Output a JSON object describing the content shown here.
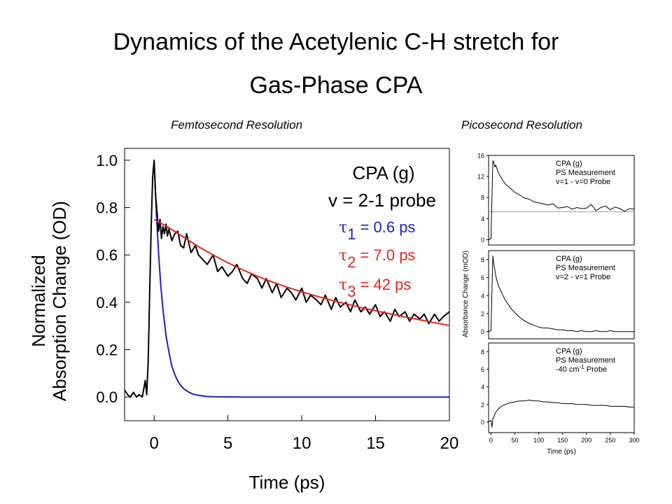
{
  "slide": {
    "title_line1": "Dynamics of the Acetylenic C-H stretch for",
    "title_line2": "Gas-Phase CPA",
    "subtitle_femto": "Femtosecond Resolution",
    "subtitle_pico": "Picosecond Resolution"
  },
  "colors": {
    "data": "#000000",
    "tau1_fit": "#1f1fbf",
    "tau23_fit": "#e0281c",
    "baseline": "#a0a0a0"
  },
  "chart_data": [
    {
      "type": "line",
      "xlabel": "Time (ps)",
      "ylabel_line1": "Normalized",
      "ylabel_line2": "Absorption Change (OD)",
      "xlim": [
        -2,
        20
      ],
      "ylim": [
        -0.1,
        1.05
      ],
      "xticks": [
        0,
        5,
        10,
        15,
        20
      ],
      "yticks": [
        0.0,
        0.2,
        0.4,
        0.6,
        0.8,
        1.0
      ],
      "ytick_labels": [
        "0.0",
        "0.2",
        "0.4",
        "0.6",
        "0.8",
        "1.0"
      ],
      "legend": {
        "line1": "CPA (g)",
        "line2": "v = 2-1 probe",
        "tau1": {
          "symbol": "τ",
          "sub": "1",
          "text": "= 0.6 ps"
        },
        "tau2": {
          "symbol": "τ",
          "sub": "2",
          "text": "= 7.0 ps"
        },
        "tau3": {
          "symbol": "τ",
          "sub": "3",
          "text": "= 42 ps"
        }
      },
      "series": [
        {
          "x": [
            -2,
            -1.8,
            -1.6,
            -1.4,
            -1.2,
            -1.0,
            -0.8,
            -0.6,
            -0.5,
            -0.4,
            -0.3,
            -0.2,
            -0.1,
            0.0,
            0.1,
            0.2,
            0.3,
            0.4,
            0.5,
            0.6,
            0.7,
            0.8,
            0.9,
            1.0,
            1.2,
            1.4,
            1.6,
            1.8,
            2.0,
            2.2,
            2.5,
            2.8,
            3.0,
            3.3,
            3.6,
            4.0,
            4.3,
            4.6,
            5.0,
            5.3,
            5.6,
            6.0,
            6.3,
            6.6,
            7.0,
            7.3,
            7.6,
            8.0,
            8.3,
            8.6,
            9.0,
            9.3,
            9.6,
            10.0,
            10.3,
            10.6,
            11.0,
            11.3,
            11.6,
            12.0,
            12.3,
            12.6,
            13.0,
            13.3,
            13.6,
            14.0,
            14.3,
            14.6,
            15.0,
            15.3,
            15.6,
            16.0,
            16.3,
            16.6,
            17.0,
            17.3,
            17.6,
            18.0,
            18.3,
            18.6,
            19.0,
            19.3,
            19.6,
            20.0
          ],
          "values": [
            0.03,
            0.01,
            0.0,
            0.02,
            0.0,
            0.01,
            0.0,
            0.07,
            0.01,
            0.15,
            0.45,
            0.72,
            0.93,
            1.0,
            0.85,
            0.78,
            0.7,
            0.75,
            0.67,
            0.72,
            0.69,
            0.73,
            0.68,
            0.71,
            0.66,
            0.69,
            0.7,
            0.64,
            0.63,
            0.69,
            0.61,
            0.64,
            0.6,
            0.58,
            0.56,
            0.6,
            0.53,
            0.55,
            0.51,
            0.53,
            0.56,
            0.5,
            0.48,
            0.52,
            0.5,
            0.46,
            0.5,
            0.44,
            0.48,
            0.42,
            0.46,
            0.44,
            0.41,
            0.46,
            0.4,
            0.43,
            0.41,
            0.39,
            0.43,
            0.37,
            0.42,
            0.38,
            0.4,
            0.36,
            0.41,
            0.36,
            0.38,
            0.35,
            0.39,
            0.34,
            0.36,
            0.32,
            0.37,
            0.34,
            0.36,
            0.32,
            0.35,
            0.33,
            0.35,
            0.31,
            0.35,
            0.32,
            0.34,
            0.36
          ]
        },
        {
          "x": [
            0.0,
            0.15,
            0.3,
            0.45,
            0.6,
            0.8,
            1.0,
            1.2,
            1.4,
            1.6,
            1.8,
            2.0,
            2.3,
            2.6,
            3.0,
            3.5,
            4.0,
            6.0,
            10.0,
            15.0,
            20.0
          ],
          "values": [
            0.99,
            0.78,
            0.61,
            0.47,
            0.37,
            0.26,
            0.19,
            0.13,
            0.095,
            0.068,
            0.049,
            0.035,
            0.022,
            0.013,
            0.007,
            0.003,
            0.001,
            0.0,
            0.0,
            0.0,
            0.0
          ]
        },
        {
          "x": [
            0,
            1,
            2,
            3,
            4,
            5,
            6,
            7,
            8,
            9,
            10,
            11,
            12,
            13,
            14,
            15,
            16,
            17,
            18,
            19,
            20
          ],
          "values": [
            0.75,
            0.715,
            0.675,
            0.635,
            0.6,
            0.567,
            0.537,
            0.51,
            0.486,
            0.464,
            0.444,
            0.426,
            0.409,
            0.393,
            0.378,
            0.364,
            0.351,
            0.338,
            0.326,
            0.314,
            0.302
          ]
        }
      ]
    },
    {
      "type": "line",
      "title_lines": [
        "CPA (g)",
        "PS Measurement",
        "v=1 - v=0 Probe"
      ],
      "xlim": [
        -5,
        300
      ],
      "ylim": [
        -1,
        16
      ],
      "yticks": [
        0,
        4,
        8,
        12,
        16
      ],
      "baseline": 5.3,
      "series": [
        {
          "x": [
            -5,
            0,
            2,
            4,
            6,
            8,
            10,
            15,
            20,
            25,
            30,
            40,
            50,
            60,
            70,
            80,
            90,
            100,
            110,
            120,
            130,
            140,
            150,
            160,
            170,
            180,
            190,
            200,
            210,
            220,
            230,
            240,
            250,
            260,
            270,
            280,
            290,
            300
          ],
          "values": [
            0,
            0.2,
            8,
            15,
            14.6,
            13.8,
            14.2,
            12.8,
            12.0,
            11.2,
            10.6,
            9.8,
            9.0,
            8.5,
            7.9,
            7.7,
            7.2,
            7.0,
            6.8,
            6.6,
            6.8,
            6.0,
            6.1,
            6.3,
            5.8,
            6.1,
            5.9,
            6.0,
            6.7,
            5.5,
            6.1,
            6.4,
            5.7,
            6.2,
            5.9,
            5.4,
            5.9,
            5.8
          ]
        }
      ]
    },
    {
      "type": "line",
      "title_lines": [
        "CPA (g)",
        "PS Measurement",
        "v=2 - v=1 Probe"
      ],
      "xlim": [
        -5,
        300
      ],
      "ylim": [
        -0.8,
        9
      ],
      "yticks": [
        0,
        2,
        4,
        6,
        8
      ],
      "series": [
        {
          "x": [
            -5,
            0,
            2,
            4,
            6,
            8,
            10,
            15,
            20,
            25,
            30,
            40,
            50,
            60,
            70,
            80,
            90,
            100,
            110,
            120,
            130,
            140,
            150,
            160,
            170,
            180,
            190,
            200,
            210,
            220,
            230,
            240,
            250,
            260,
            270,
            280,
            290,
            300
          ],
          "values": [
            0,
            0.1,
            4.5,
            8.4,
            7.5,
            6.9,
            6.2,
            5.2,
            4.6,
            4.0,
            3.5,
            2.7,
            2.1,
            1.6,
            1.2,
            0.9,
            0.7,
            0.5,
            0.4,
            0.4,
            0.3,
            0.2,
            0.2,
            0.1,
            0.1,
            0.0,
            0.1,
            0.0,
            0.0,
            0.1,
            0.0,
            0.0,
            0.1,
            0.0,
            0.0,
            0.0,
            0.0,
            0.0
          ]
        }
      ]
    },
    {
      "type": "line",
      "title_lines": [
        "CPA (g)",
        "PS Measurement"
      ],
      "title_probe": {
        "prefix": "-40 cm",
        "sup": "-1",
        "suffix": " Probe"
      },
      "xlabel": "Time (ps)",
      "xlim": [
        -5,
        300
      ],
      "xticks": [
        0,
        50,
        100,
        150,
        200,
        250,
        300
      ],
      "ylim": [
        -1.2,
        9
      ],
      "yticks": [
        0,
        2,
        4,
        6,
        8
      ],
      "series": [
        {
          "x": [
            -5,
            0,
            2,
            4,
            6,
            8,
            10,
            15,
            20,
            25,
            30,
            40,
            50,
            60,
            70,
            80,
            90,
            100,
            110,
            120,
            130,
            140,
            150,
            160,
            170,
            180,
            190,
            200,
            210,
            220,
            230,
            240,
            250,
            260,
            270,
            280,
            290,
            300
          ],
          "values": [
            0,
            0.2,
            -0.6,
            0.4,
            0.6,
            0.9,
            1.1,
            1.5,
            1.7,
            1.9,
            2.0,
            2.2,
            2.3,
            2.4,
            2.4,
            2.5,
            2.4,
            2.4,
            2.3,
            2.3,
            2.2,
            2.2,
            2.1,
            2.1,
            2.1,
            2.0,
            2.0,
            2.0,
            1.9,
            1.9,
            1.9,
            1.9,
            1.8,
            1.8,
            1.8,
            1.8,
            1.7,
            1.7
          ]
        }
      ]
    }
  ],
  "pico_shared_ylabel": "Absorbance Change (mOD)"
}
